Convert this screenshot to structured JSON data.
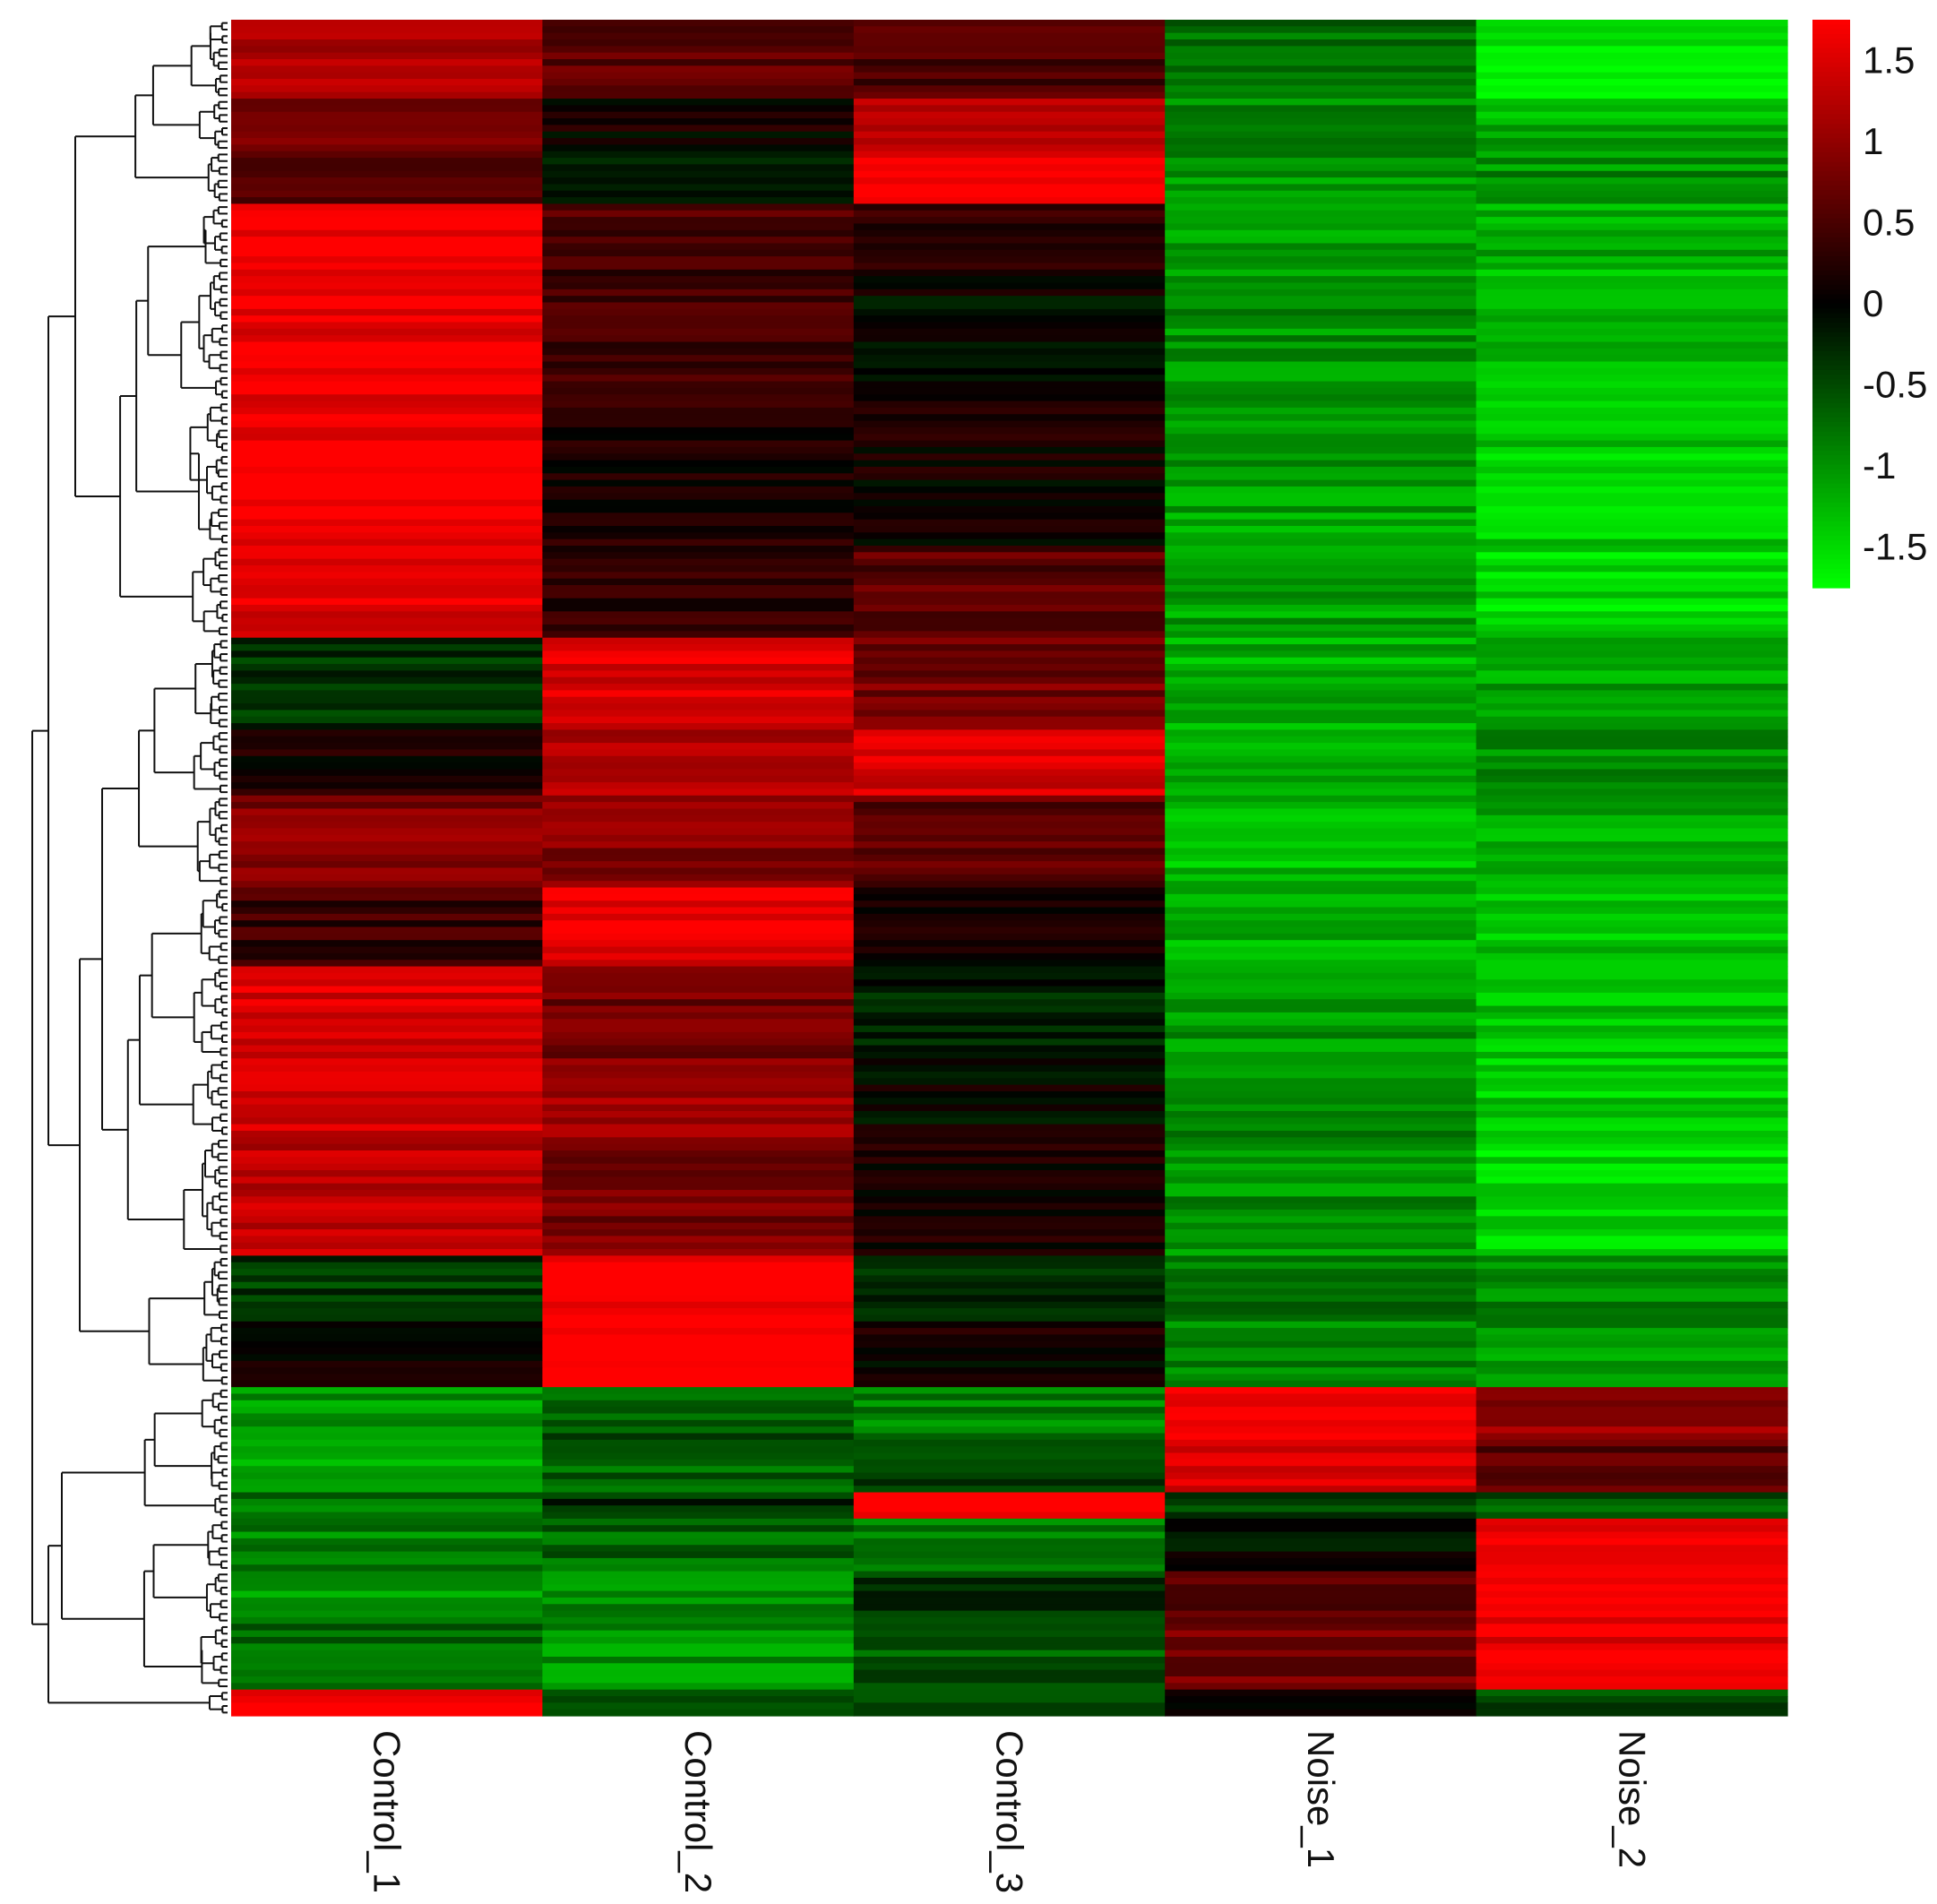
{
  "chart_data": {
    "type": "heatmap",
    "columns": [
      "Control_1",
      "Control_2",
      "Control_3",
      "Noise_1",
      "Noise_2"
    ],
    "color_scale": {
      "min": -1.75,
      "max": 1.75,
      "low_color": "#00ff00",
      "mid_color": "#000000",
      "high_color": "#ff0000",
      "ticks": [
        1.5,
        1,
        0.5,
        0,
        -0.5,
        -1,
        -1.5
      ],
      "tick_labels": [
        "1.5",
        "1",
        "0.5",
        "0",
        "-0.5",
        "-1",
        "-1.5"
      ]
    },
    "row_dendrogram": true,
    "row_order_note_free": true,
    "row_blocks": [
      {
        "rows": 12,
        "values": [
          1.2,
          0.6,
          0.5,
          -0.8,
          -1.6
        ]
      },
      {
        "rows": 8,
        "values": [
          0.8,
          0.1,
          1.3,
          -0.9,
          -1.2
        ]
      },
      {
        "rows": 8,
        "values": [
          0.6,
          -0.3,
          1.7,
          -1.0,
          -1.0
        ]
      },
      {
        "rows": 10,
        "values": [
          1.7,
          0.5,
          0.4,
          -1.1,
          -1.2
        ]
      },
      {
        "rows": 20,
        "values": [
          1.6,
          0.4,
          0.0,
          -1.0,
          -1.3
        ]
      },
      {
        "rows": 22,
        "values": [
          1.7,
          0.2,
          0.1,
          -1.1,
          -1.4
        ]
      },
      {
        "rows": 14,
        "values": [
          1.5,
          0.3,
          0.6,
          -1.1,
          -1.5
        ]
      },
      {
        "rows": 14,
        "values": [
          -0.3,
          1.5,
          0.8,
          -1.2,
          -1.1
        ]
      },
      {
        "rows": 10,
        "values": [
          0.1,
          1.2,
          1.5,
          -1.1,
          -1.0
        ]
      },
      {
        "rows": 14,
        "values": [
          0.9,
          0.9,
          0.6,
          -1.3,
          -1.2
        ]
      },
      {
        "rows": 12,
        "values": [
          0.4,
          1.6,
          0.1,
          -1.2,
          -1.3
        ]
      },
      {
        "rows": 14,
        "values": [
          1.5,
          0.8,
          -0.2,
          -1.0,
          -1.3
        ]
      },
      {
        "rows": 12,
        "values": [
          1.4,
          1.1,
          0.0,
          -0.9,
          -1.4
        ]
      },
      {
        "rows": 18,
        "values": [
          1.3,
          0.8,
          0.2,
          -1.0,
          -1.5
        ]
      },
      {
        "rows": 10,
        "values": [
          -0.4,
          1.8,
          -0.3,
          -0.8,
          -0.9
        ]
      },
      {
        "rows": 10,
        "values": [
          0.0,
          1.8,
          0.1,
          -0.9,
          -1.0
        ]
      },
      {
        "rows": 8,
        "values": [
          -1.0,
          -0.6,
          -0.9,
          1.6,
          1.0
        ]
      },
      {
        "rows": 8,
        "values": [
          -1.1,
          -0.7,
          -0.5,
          1.5,
          0.6
        ]
      },
      {
        "rows": 4,
        "values": [
          -0.8,
          -0.3,
          1.7,
          -0.5,
          -0.6
        ]
      },
      {
        "rows": 8,
        "values": [
          -0.9,
          -0.7,
          -0.8,
          0.0,
          1.7
        ]
      },
      {
        "rows": 8,
        "values": [
          -1.0,
          -0.9,
          -0.4,
          0.6,
          1.7
        ]
      },
      {
        "rows": 10,
        "values": [
          -0.7,
          -1.0,
          -0.6,
          0.8,
          1.6
        ]
      },
      {
        "rows": 4,
        "values": [
          1.8,
          -0.4,
          -0.6,
          0.2,
          -0.5
        ]
      }
    ]
  }
}
